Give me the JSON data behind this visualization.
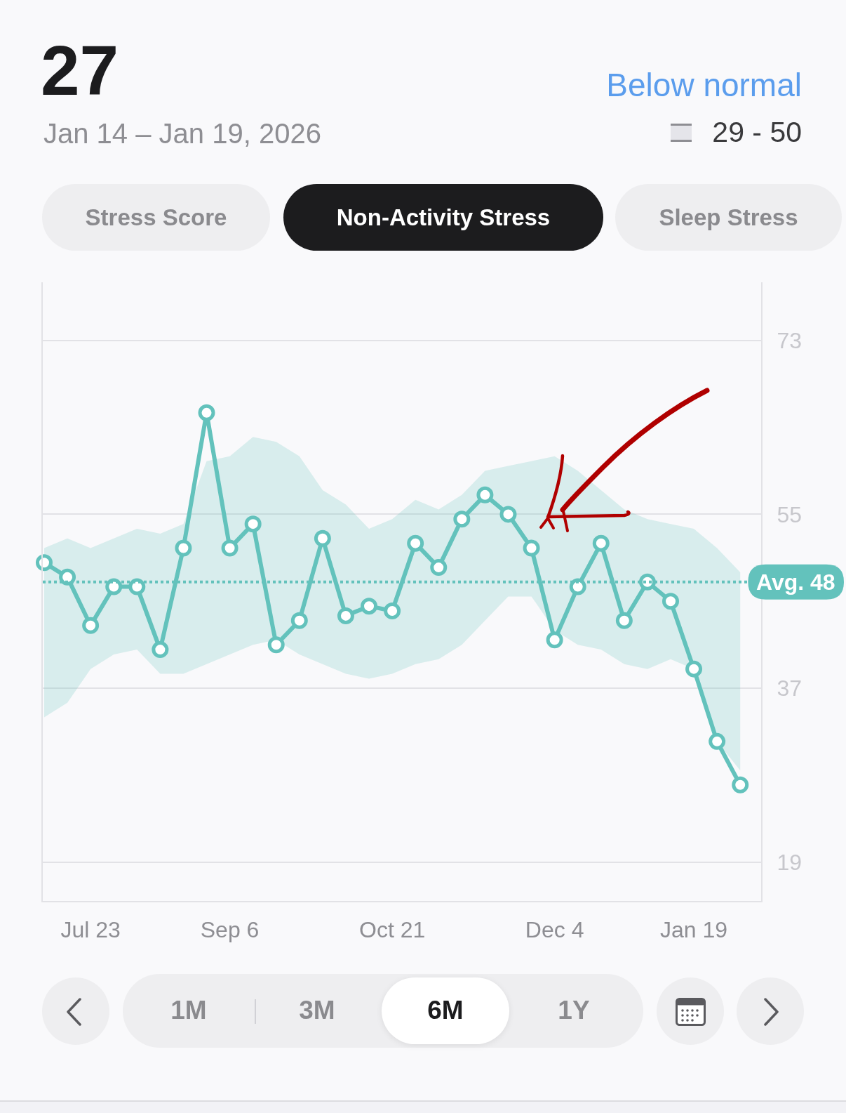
{
  "chart_data": {
    "type": "line",
    "title": "27",
    "subtitle": "Jan 14 – Jan 19, 2026",
    "categories": [
      null,
      null,
      "Jul 23",
      null,
      null,
      null,
      null,
      null,
      "Sep 6",
      null,
      null,
      null,
      null,
      null,
      null,
      "Oct 21",
      null,
      null,
      null,
      null,
      null,
      null,
      "Dec 4",
      null,
      null,
      null,
      null,
      null,
      "Jan 19",
      null,
      null
    ],
    "series": [
      {
        "color": "#63c2bc",
        "values": [
          50,
          48.5,
          43.5,
          47.5,
          47.5,
          41,
          51.5,
          65.5,
          51.5,
          54,
          41.5,
          44,
          52.5,
          44.5,
          45.5,
          45,
          52,
          49.5,
          54.5,
          57,
          55,
          51.5,
          42,
          47.5,
          52,
          44,
          48,
          46,
          39,
          31.5,
          27
        ],
        "lower": [
          34,
          35.5,
          39,
          40.5,
          41,
          38.5,
          38.5,
          39.5,
          40.5,
          41.5,
          42,
          40.5,
          39.5,
          38.5,
          38,
          38.5,
          39.5,
          40,
          41.5,
          44,
          46.5,
          46.5,
          43,
          41.5,
          41,
          39.5,
          39,
          40,
          39,
          31.5,
          28.5
        ],
        "upper": [
          51.5,
          52.5,
          51.5,
          52.5,
          53.5,
          53,
          54,
          60.5,
          61,
          63,
          62.5,
          61,
          57.5,
          56,
          53.5,
          54.5,
          56.5,
          55.5,
          57,
          59.5,
          60,
          60.5,
          61,
          59.5,
          57.5,
          55.5,
          54.5,
          54,
          53.5,
          51.5,
          49
        ]
      }
    ],
    "ylim": [
      15,
      79
    ],
    "yticks": [
      19,
      37,
      55,
      73
    ],
    "grid": "y",
    "marker": "circle",
    "line_style": "solid",
    "ref_lines": [
      {
        "axis": "y",
        "value": 48,
        "label": "Avg. 48",
        "color": "#63c2bc",
        "line_style": "dotted"
      }
    ],
    "annotations": [
      "Below normal",
      "29 - 50",
      "Stress Score",
      "Non-Activity Stress",
      "Sleep Stress",
      "1M",
      "3M",
      "6M",
      "1Y"
    ]
  }
}
